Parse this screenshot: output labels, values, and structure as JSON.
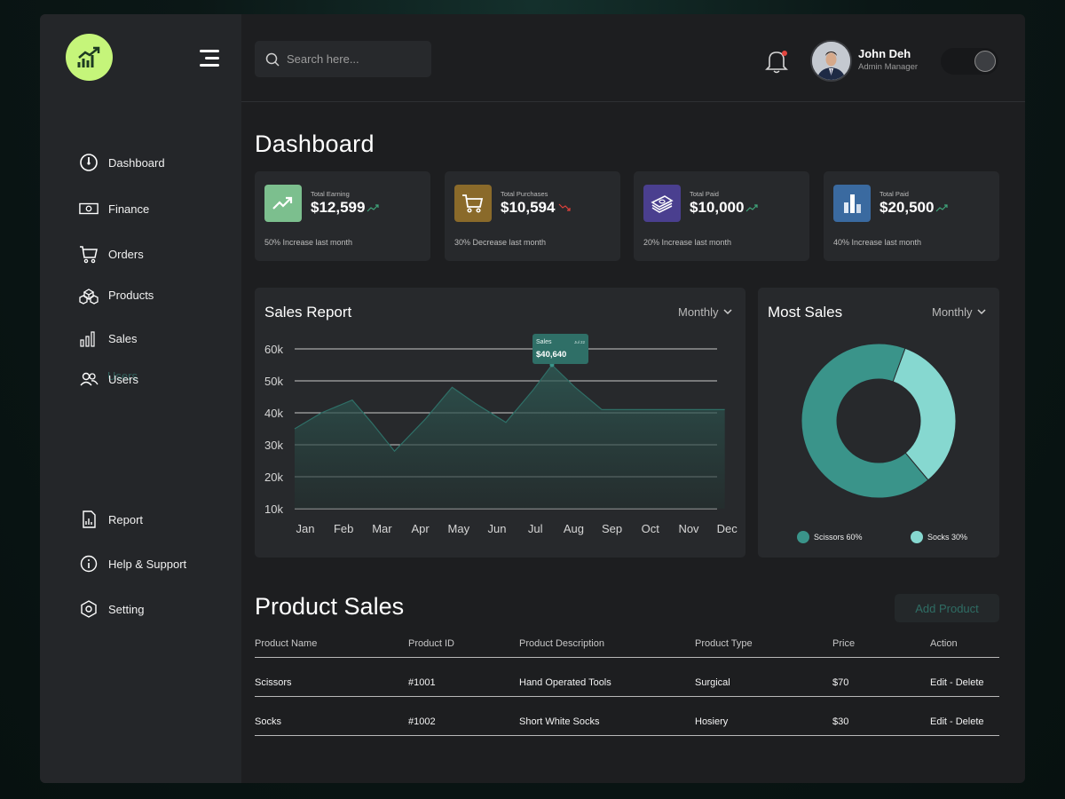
{
  "sidebar": {
    "nav_top": [
      {
        "label": "Dashboard",
        "icon": "gauge-icon"
      },
      {
        "label": "Finance",
        "icon": "banknote-icon"
      },
      {
        "label": "Orders",
        "icon": "cart-icon"
      },
      {
        "label": "Products",
        "icon": "boxes-icon"
      },
      {
        "label": "Sales",
        "icon": "bar-chart-icon"
      },
      {
        "label": "Users",
        "icon": "users-icon"
      }
    ],
    "ghost_label": "Users",
    "nav_bottom": [
      {
        "label": "Report",
        "icon": "report-icon"
      },
      {
        "label": "Help & Support",
        "icon": "info-icon"
      },
      {
        "label": "Setting",
        "icon": "gear-icon"
      }
    ]
  },
  "header": {
    "search_placeholder": "Search here...",
    "user_name": "John Deh",
    "user_role": "Admin Manager"
  },
  "page_title": "Dashboard",
  "stats": [
    {
      "label": "Total Earning",
      "value": "$12,599",
      "trend": "up",
      "note": "50% Increase last month",
      "icon": "trend-up-icon",
      "color": "#7cbf8e"
    },
    {
      "label": "Total Purchases",
      "value": "$10,594",
      "trend": "down",
      "note": "30% Decrease last month",
      "icon": "cart-icon",
      "color": "#8a6a2a"
    },
    {
      "label": "Total Paid",
      "value": "$10,000",
      "trend": "up",
      "note": "20% Increase last month",
      "icon": "money-stack-icon",
      "color": "#4a3f8f"
    },
    {
      "label": "Total Paid",
      "value": "$20,500",
      "trend": "up",
      "note": "40% Increase last month",
      "icon": "bar-chart-icon",
      "color": "#3a6aa0"
    }
  ],
  "sales_report": {
    "title": "Sales Report",
    "period": "Monthly",
    "tooltip_label": "Sales",
    "tooltip_date": "Jul 22",
    "tooltip_value": "$40,640"
  },
  "most_sales": {
    "title": "Most Sales",
    "period": "Monthly",
    "legend": [
      {
        "label": "Scissors 60%",
        "color": "#3a948a"
      },
      {
        "label": "Socks 30%",
        "color": "#86d8d0"
      }
    ]
  },
  "chart_data": [
    {
      "type": "area",
      "title": "Sales Report",
      "categories": [
        "Jan",
        "Feb",
        "Mar",
        "Apr",
        "May",
        "Jun",
        "Jul",
        "Aug",
        "Sep",
        "Oct",
        "Nov",
        "Dec"
      ],
      "x": [
        0,
        0.7,
        1.5,
        2.0,
        2.6,
        3.4,
        4.1,
        4.7,
        5.5,
        6.2,
        6.7,
        7.3,
        8.0,
        8.8,
        9.6,
        10.4,
        11.2
      ],
      "y": [
        35000,
        40000,
        44000,
        37000,
        28000,
        38000,
        48000,
        43000,
        37000,
        47000,
        55000,
        48000,
        41000,
        41000,
        41000,
        41000,
        41000
      ],
      "ylim": [
        10000,
        60000
      ],
      "yticks": [
        "10k",
        "20k",
        "30k",
        "40k",
        "50k",
        "60k"
      ],
      "ytick_values": [
        10000,
        20000,
        30000,
        40000,
        50000,
        60000
      ],
      "grid": true,
      "color": "#2f6f67"
    },
    {
      "type": "pie",
      "title": "Most Sales",
      "labels": [
        "Scissors",
        "Socks"
      ],
      "values": [
        60,
        30
      ],
      "colors": [
        "#3a948a",
        "#86d8d0"
      ],
      "donut": true
    }
  ],
  "product_sales": {
    "title": "Product Sales",
    "add_button": "Add Product",
    "columns": [
      "Product Name",
      "Product ID",
      "Product Description",
      "Product Type",
      "Price",
      "Action"
    ],
    "rows": [
      [
        "Scissors",
        "#1001",
        "Hand Operated Tools",
        "Surgical",
        "$70",
        "Edit - Delete"
      ],
      [
        "Socks",
        "#1002",
        "Short White Socks",
        "Hosiery",
        "$30",
        "Edit - Delete"
      ]
    ]
  }
}
